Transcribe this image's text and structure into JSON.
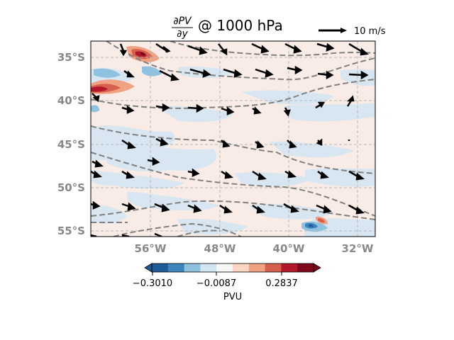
{
  "title": {
    "numerator": "∂PV",
    "denominator": "∂y",
    "suffix": "@ 1000 hPa"
  },
  "quiver_key": {
    "label": "10 m/s"
  },
  "axes": {
    "lat_ticks": [
      "35°S",
      "40°S",
      "45°S",
      "50°S",
      "55°S"
    ],
    "lon_ticks": [
      "56°W",
      "48°W",
      "40°W",
      "32°W"
    ],
    "lat_range": [
      -56,
      -33.5
    ],
    "lon_range": [
      -63,
      -30
    ]
  },
  "colorbar": {
    "label": "PVU",
    "tick_labels": [
      "−0.3010",
      "−0.0087",
      "0.2837"
    ],
    "colors": [
      "#1f5a99",
      "#3d84bd",
      "#8fc2de",
      "#d3e5f0",
      "#f7f7f7",
      "#fbd6c2",
      "#f0a283",
      "#d6604d",
      "#b2182b",
      "#80061e"
    ]
  },
  "style": {
    "background_field": "#f9ebe6",
    "negative_patch": "#d7e6f1",
    "contour": "#808080",
    "grid": "#b8b8b8",
    "tick_color": "#888888"
  }
}
